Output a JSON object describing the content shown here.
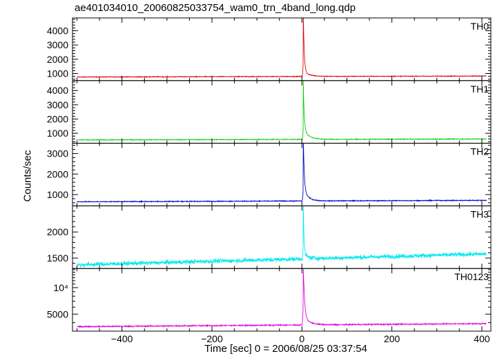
{
  "chart_data": {
    "type": "line",
    "title": "ae401034010_20060825033754_wam0_trn_4band_long.qdp",
    "xlabel": "Time [sec] 0 = 2006/08/25 03:37:54",
    "ylabel": "Counts/sec",
    "xlim": [
      -510,
      420
    ],
    "x_ticks": [
      -400,
      -200,
      0,
      200,
      400
    ],
    "x_tick_labels": [
      "−400",
      "−200",
      "0",
      "200",
      "400"
    ],
    "time_range": [
      -500,
      410
    ],
    "peak_time": 3,
    "panels": [
      {
        "name": "TH0",
        "color": "#e00000",
        "scale": "linear",
        "ylim": [
          500,
          4900
        ],
        "y_ticks": [
          1000,
          2000,
          3000,
          4000
        ],
        "y_tick_labels": [
          "1000",
          "2000",
          "3000",
          "4000"
        ],
        "baseline_start": 750,
        "baseline_end": 820,
        "noise": 25,
        "peak": 5200,
        "decay_fast": 2.0,
        "decay_slow_amp": 300,
        "decay_slow": 15
      },
      {
        "name": "TH1",
        "color": "#00d000",
        "scale": "linear",
        "ylim": [
          300,
          4700
        ],
        "y_ticks": [
          1000,
          2000,
          3000,
          4000
        ],
        "y_tick_labels": [
          "1000",
          "2000",
          "3000",
          "4000"
        ],
        "baseline_start": 530,
        "baseline_end": 600,
        "noise": 25,
        "peak": 4000,
        "decay_fast": 2.0,
        "decay_slow_amp": 700,
        "decay_slow": 12
      },
      {
        "name": "TH2",
        "color": "#0000d0",
        "scale": "linear",
        "ylim": [
          450,
          3500
        ],
        "y_ticks": [
          1000,
          2000,
          3000
        ],
        "y_tick_labels": [
          "1000",
          "2000",
          "3000"
        ],
        "baseline_start": 650,
        "baseline_end": 720,
        "noise": 20,
        "peak": 3400,
        "decay_fast": 2.0,
        "decay_slow_amp": 600,
        "decay_slow": 10
      },
      {
        "name": "TH3",
        "color": "#00e8f0",
        "scale": "linear",
        "ylim": [
          1300,
          2500
        ],
        "y_ticks": [
          1500,
          2000
        ],
        "y_tick_labels": [
          "1500",
          "2000"
        ],
        "baseline_start": 1370,
        "baseline_end": 1580,
        "noise": 40,
        "peak": 2500,
        "decay_fast": 1.5,
        "decay_slow_amp": 100,
        "decay_slow": 10
      },
      {
        "name": "TH0123",
        "color": "#e000e0",
        "scale": "log",
        "ylim": [
          3200,
          16500
        ],
        "y_ticks": [
          5000,
          10000
        ],
        "y_tick_labels": [
          "5000",
          "10⁴"
        ],
        "baseline_start": 3600,
        "baseline_end": 3900,
        "noise": 60,
        "peak": 16000,
        "decay_fast": 2.0,
        "decay_slow_amp": 1000,
        "decay_slow": 12
      }
    ]
  }
}
